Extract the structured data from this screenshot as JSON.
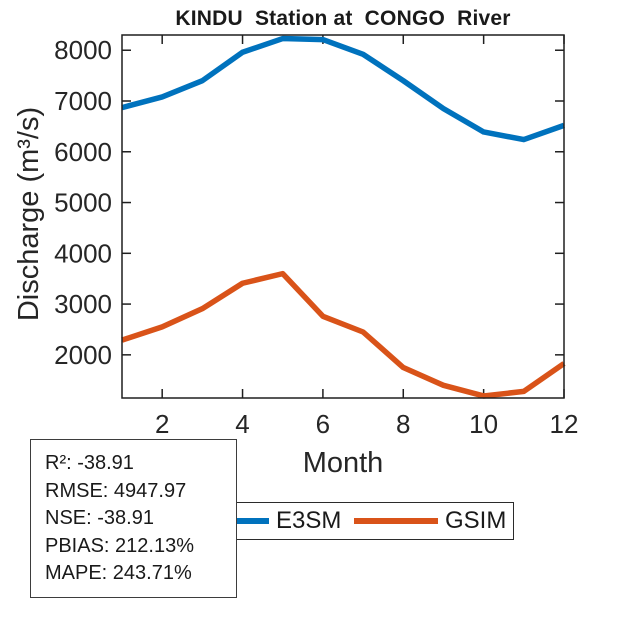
{
  "chart_data": {
    "type": "line",
    "title": "KINDU  Station at  CONGO  River",
    "xlabel": "Month",
    "ylabel": "Discharge (m³/s)",
    "x": [
      1,
      2,
      3,
      4,
      5,
      6,
      7,
      8,
      9,
      10,
      11,
      12
    ],
    "series": [
      {
        "name": "E3SM",
        "color": "#0072BD",
        "values": [
          6870,
          7080,
          7400,
          7960,
          8230,
          8210,
          7920,
          7400,
          6850,
          6390,
          6240,
          6520
        ]
      },
      {
        "name": "GSIM",
        "color": "#D95319",
        "values": [
          2290,
          2550,
          2910,
          3410,
          3600,
          2760,
          2450,
          1750,
          1400,
          1190,
          1280,
          1830
        ]
      }
    ],
    "xlim": [
      1,
      12
    ],
    "ylim": [
      1150,
      8300
    ],
    "xticks": [
      2,
      4,
      6,
      8,
      10,
      12
    ],
    "yticks": [
      2000,
      3000,
      4000,
      5000,
      6000,
      7000,
      8000
    ],
    "grid": false,
    "legend_position": "below-horizontal",
    "axis_color": "#1f1f1f"
  },
  "stats": {
    "lines": [
      "R²: -38.91",
      "RMSE: 4947.97",
      "NSE: -38.91",
      "PBIAS: 212.13%",
      "MAPE: 243.71%"
    ]
  }
}
